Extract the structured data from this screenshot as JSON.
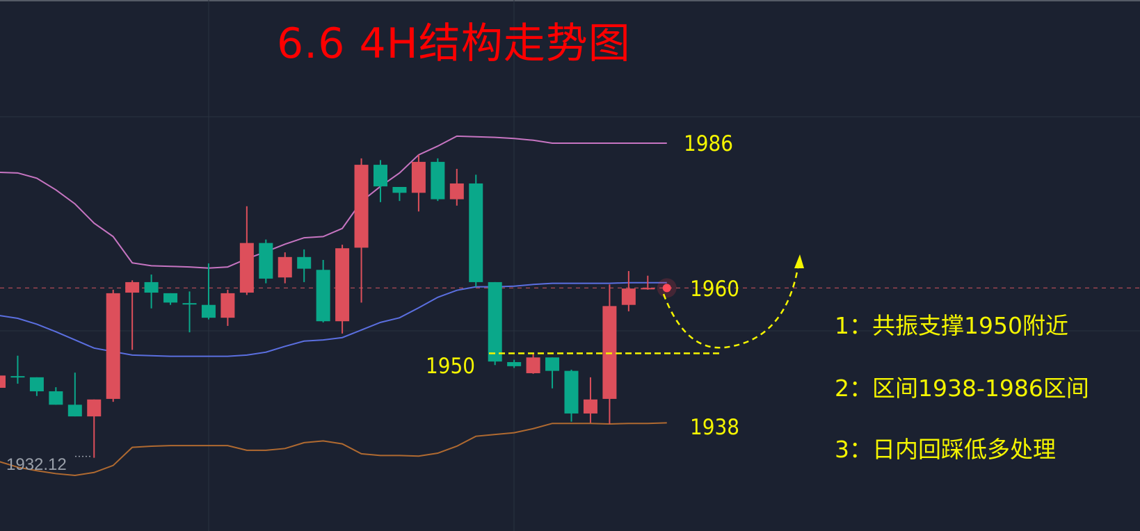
{
  "title": "6.6 4H结构走势图",
  "colors": {
    "background": "#1b2130",
    "up": "#dd4f5b",
    "down": "#0aa88a",
    "upper_band": "#c775c2",
    "middle_band": "#5b6fe0",
    "lower_band": "#b06a30",
    "annotation": "#f5f500",
    "title": "#ff0000",
    "last_price_line": "#c0505a"
  },
  "chart_data": {
    "type": "candlestick",
    "title": "6.6 4H结构走势图",
    "ylim": [
      1926,
      1996
    ],
    "grid": true,
    "last_price": 1961.2,
    "low_marker_label": "1932.12",
    "candles": [
      {
        "o": 1944.1,
        "h": 1946.5,
        "l": 1943.9,
        "c": 1946.2
      },
      {
        "o": 1946.1,
        "h": 1949.6,
        "l": 1944.8,
        "c": 1945.9
      },
      {
        "o": 1945.9,
        "h": 1945.9,
        "l": 1942.7,
        "c": 1943.5
      },
      {
        "o": 1943.5,
        "h": 1944.2,
        "l": 1941.2,
        "c": 1941.2
      },
      {
        "o": 1941.2,
        "h": 1946.7,
        "l": 1939.2,
        "c": 1939.2
      },
      {
        "o": 1939.2,
        "h": 1942.1,
        "l": 1932.12,
        "c": 1942.1
      },
      {
        "o": 1942.2,
        "h": 1960.9,
        "l": 1941.7,
        "c": 1960.3
      },
      {
        "o": 1960.4,
        "h": 1962.5,
        "l": 1950.6,
        "c": 1962.2
      },
      {
        "o": 1962.2,
        "h": 1963.5,
        "l": 1957.7,
        "c": 1960.4
      },
      {
        "o": 1960.3,
        "h": 1960.3,
        "l": 1958.3,
        "c": 1958.7
      },
      {
        "o": 1958.6,
        "h": 1960.6,
        "l": 1953.6,
        "c": 1958.4
      },
      {
        "o": 1958.3,
        "h": 1965.4,
        "l": 1955.8,
        "c": 1956.1
      },
      {
        "o": 1956.1,
        "h": 1960.9,
        "l": 1954.7,
        "c": 1960.3
      },
      {
        "o": 1960.4,
        "h": 1975.2,
        "l": 1960.0,
        "c": 1968.9
      },
      {
        "o": 1968.9,
        "h": 1969.5,
        "l": 1962.0,
        "c": 1962.8
      },
      {
        "o": 1963.0,
        "h": 1967.3,
        "l": 1962.0,
        "c": 1966.5
      },
      {
        "o": 1966.5,
        "h": 1967.8,
        "l": 1962.2,
        "c": 1964.5
      },
      {
        "o": 1964.3,
        "h": 1966.0,
        "l": 1955.3,
        "c": 1955.5
      },
      {
        "o": 1955.5,
        "h": 1968.6,
        "l": 1953.4,
        "c": 1968.0
      },
      {
        "o": 1968.1,
        "h": 1983.4,
        "l": 1958.7,
        "c": 1982.3
      },
      {
        "o": 1982.3,
        "h": 1983.1,
        "l": 1975.9,
        "c": 1978.6
      },
      {
        "o": 1978.5,
        "h": 1978.5,
        "l": 1976.1,
        "c": 1977.5
      },
      {
        "o": 1977.5,
        "h": 1984.0,
        "l": 1974.3,
        "c": 1982.8
      },
      {
        "o": 1982.8,
        "h": 1983.4,
        "l": 1976.1,
        "c": 1976.4
      },
      {
        "o": 1976.4,
        "h": 1981.6,
        "l": 1975.3,
        "c": 1979.1
      },
      {
        "o": 1979.1,
        "h": 1980.6,
        "l": 1961.4,
        "c": 1962.2
      },
      {
        "o": 1962.2,
        "h": 1962.2,
        "l": 1948.0,
        "c": 1948.6
      },
      {
        "o": 1948.5,
        "h": 1948.9,
        "l": 1947.5,
        "c": 1947.8
      },
      {
        "o": 1946.6,
        "h": 1950.0,
        "l": 1946.5,
        "c": 1949.3
      },
      {
        "o": 1949.3,
        "h": 1949.3,
        "l": 1944.0,
        "c": 1947.0
      },
      {
        "o": 1947.0,
        "h": 1947.2,
        "l": 1938.3,
        "c": 1939.7
      },
      {
        "o": 1939.7,
        "h": 1945.9,
        "l": 1938.1,
        "c": 1942.1
      },
      {
        "o": 1942.2,
        "h": 1961.8,
        "l": 1937.9,
        "c": 1958.1
      },
      {
        "o": 1958.3,
        "h": 1964.1,
        "l": 1957.2,
        "c": 1961.1
      },
      {
        "o": 1961.1,
        "h": 1963.3,
        "l": 1960.9,
        "c": 1961.2
      }
    ],
    "bands": {
      "upper": [
        1981.0,
        1980.9,
        1980.0,
        1978.0,
        1975.6,
        1972.3,
        1970.0,
        1965.5,
        1965.0,
        1964.9,
        1964.8,
        1964.6,
        1964.8,
        1966.2,
        1967.4,
        1968.7,
        1969.8,
        1970.0,
        1971.4,
        1976.0,
        1978.6,
        1980.9,
        1984.0,
        1985.5,
        1987.2,
        1987.1,
        1987.0,
        1986.8,
        1986.5,
        1986.0,
        1986.0,
        1986.0,
        1986.0,
        1986.0,
        1986.0,
        1986.0
      ],
      "middle": [
        1956.5,
        1956.0,
        1955.0,
        1953.7,
        1952.3,
        1950.9,
        1950.3,
        1949.7,
        1949.6,
        1949.5,
        1949.5,
        1949.5,
        1949.5,
        1949.7,
        1950.2,
        1951.2,
        1952.1,
        1952.3,
        1952.7,
        1954.0,
        1955.3,
        1956.1,
        1957.8,
        1959.6,
        1960.8,
        1961.4,
        1961.4,
        1961.5,
        1961.8,
        1962.0,
        1962.0,
        1962.0,
        1962.0,
        1962.1,
        1962.1,
        1962.1
      ],
      "lower": [
        1931.5,
        1930.5,
        1929.9,
        1929.4,
        1929.1,
        1929.6,
        1930.8,
        1933.9,
        1934.1,
        1934.2,
        1934.2,
        1934.2,
        1934.2,
        1933.4,
        1933.4,
        1933.7,
        1934.7,
        1935.0,
        1934.5,
        1932.8,
        1932.5,
        1932.5,
        1932.4,
        1932.9,
        1934.1,
        1935.8,
        1936.1,
        1936.4,
        1937.1,
        1938.0,
        1938.0,
        1938.0,
        1937.9,
        1938.0,
        1938.0,
        1938.1
      ]
    },
    "levels": {
      "upper": "1986",
      "middle": "1960",
      "support": "1950",
      "lower": "1938"
    },
    "support_line": 1950,
    "annotations": [
      "1：共振支撑1950附近",
      "2：区间1938-1986区间",
      "3：日内回踩低多处理"
    ]
  }
}
